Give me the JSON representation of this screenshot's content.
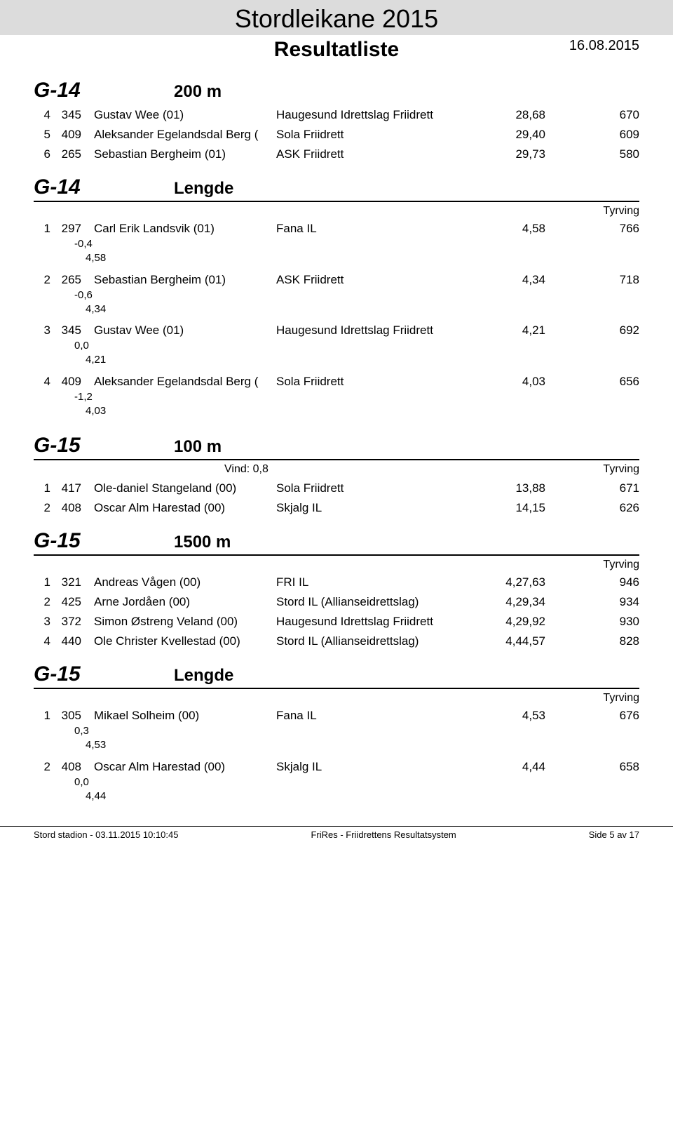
{
  "header": {
    "title": "Stordleikane 2015",
    "subtitle": "Resultatliste",
    "date": "16.08.2015"
  },
  "sections": [
    {
      "group": "G-14",
      "event": "200 m",
      "tyrving_label": "",
      "no_bottom_border": true,
      "rows": [
        {
          "pos": "4",
          "bib": "345",
          "name": "Gustav Wee (01)",
          "club": "Haugesund Idrettslag Friidrett",
          "res": "28,68",
          "pts": "670"
        },
        {
          "pos": "5",
          "bib": "409",
          "name": "Aleksander Egelandsdal Berg (",
          "club": "Sola Friidrett",
          "res": "29,40",
          "pts": "609"
        },
        {
          "pos": "6",
          "bib": "265",
          "name": "Sebastian Bergheim (01)",
          "club": "ASK Friidrett",
          "res": "29,73",
          "pts": "580"
        }
      ]
    },
    {
      "group": "G-14",
      "event": "Lengde",
      "tyrving_label": "Tyrving",
      "rows": [
        {
          "pos": "1",
          "bib": "297",
          "name": "Carl Erik Landsvik (01)",
          "club": "Fana IL",
          "res": "4,58",
          "pts": "766",
          "sub1": "-0,4",
          "sub2": "4,58"
        },
        {
          "pos": "2",
          "bib": "265",
          "name": "Sebastian Bergheim (01)",
          "club": "ASK Friidrett",
          "res": "4,34",
          "pts": "718",
          "sub1": "-0,6",
          "sub2": "4,34"
        },
        {
          "pos": "3",
          "bib": "345",
          "name": "Gustav Wee (01)",
          "club": "Haugesund Idrettslag Friidrett",
          "res": "4,21",
          "pts": "692",
          "sub1": "0,0",
          "sub2": "4,21"
        },
        {
          "pos": "4",
          "bib": "409",
          "name": "Aleksander Egelandsdal Berg (",
          "club": "Sola Friidrett",
          "res": "4,03",
          "pts": "656",
          "sub1": "-1,2",
          "sub2": "4,03"
        }
      ]
    },
    {
      "group": "G-15",
      "event": "100 m",
      "wind": "Vind: 0,8",
      "tyrving_label": "Tyrving",
      "rows": [
        {
          "pos": "1",
          "bib": "417",
          "name": "Ole-daniel Stangeland (00)",
          "club": "Sola Friidrett",
          "res": "13,88",
          "pts": "671"
        },
        {
          "pos": "2",
          "bib": "408",
          "name": "Oscar Alm Harestad (00)",
          "club": "Skjalg IL",
          "res": "14,15",
          "pts": "626"
        }
      ]
    },
    {
      "group": "G-15",
      "event": "1500 m",
      "tyrving_label": "Tyrving",
      "rows": [
        {
          "pos": "1",
          "bib": "321",
          "name": "Andreas Vågen (00)",
          "club": "FRI IL",
          "res": "4,27,63",
          "pts": "946"
        },
        {
          "pos": "2",
          "bib": "425",
          "name": "Arne Jordåen (00)",
          "club": "Stord IL (Allianseidrettslag)",
          "res": "4,29,34",
          "pts": "934"
        },
        {
          "pos": "3",
          "bib": "372",
          "name": "Simon Østreng Veland (00)",
          "club": "Haugesund Idrettslag Friidrett",
          "res": "4,29,92",
          "pts": "930"
        },
        {
          "pos": "4",
          "bib": "440",
          "name": "Ole Christer Kvellestad (00)",
          "club": "Stord IL (Allianseidrettslag)",
          "res": "4,44,57",
          "pts": "828"
        }
      ]
    },
    {
      "group": "G-15",
      "event": "Lengde",
      "tyrving_label": "Tyrving",
      "rows": [
        {
          "pos": "1",
          "bib": "305",
          "name": "Mikael Solheim (00)",
          "club": "Fana IL",
          "res": "4,53",
          "pts": "676",
          "sub1": "0,3",
          "sub2": "4,53"
        },
        {
          "pos": "2",
          "bib": "408",
          "name": "Oscar Alm Harestad (00)",
          "club": "Skjalg IL",
          "res": "4,44",
          "pts": "658",
          "sub1": "0,0",
          "sub2": "4,44"
        }
      ]
    }
  ],
  "footer": {
    "left": "Stord stadion - 03.11.2015 10:10:45",
    "center": "FriRes - Friidrettens Resultatsystem",
    "right": "Side 5 av 17"
  }
}
